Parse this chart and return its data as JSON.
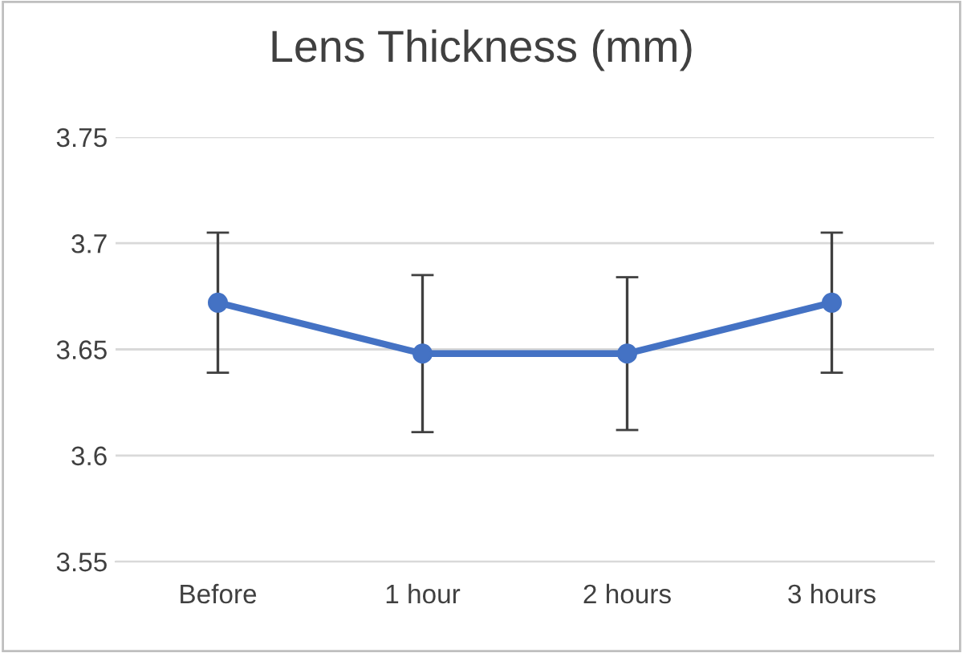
{
  "chart_data": {
    "type": "line",
    "title": "Lens Thickness (mm)",
    "categories": [
      "Before",
      "1 hour",
      "2 hours",
      "3 hours"
    ],
    "values": [
      3.672,
      3.648,
      3.648,
      3.672
    ],
    "errors": [
      0.033,
      0.037,
      0.036,
      0.033
    ],
    "color": "#4472c4",
    "marker": "circle",
    "ylim": [
      3.55,
      3.75
    ],
    "yticks": [
      3.55,
      3.6,
      3.65,
      3.7,
      3.75
    ],
    "grid": "y"
  }
}
